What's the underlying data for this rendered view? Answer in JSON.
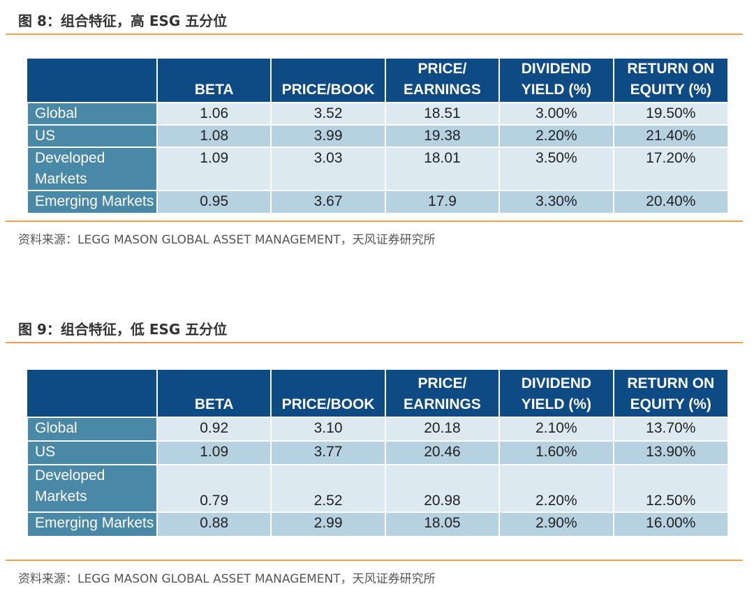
{
  "figure8": {
    "title": "图 8：组合特征，高 ESG 五分位",
    "headers": [
      "",
      "BETA",
      "PRICE/BOOK",
      "PRICE/\nEARNINGS",
      "DIVIDEND\nYIELD (%)",
      "RETURN ON\nEQUITY (%)"
    ],
    "rows": [
      {
        "label": "Global",
        "values": [
          "1.06",
          "3.52",
          "18.51",
          "3.00%",
          "19.50%"
        ]
      },
      {
        "label": "US",
        "values": [
          "1.08",
          "3.99",
          "19.38",
          "2.20%",
          "21.40%"
        ]
      },
      {
        "label": "Developed\nMarkets",
        "values": [
          "1.09",
          "3.03",
          "18.01",
          "3.50%",
          "17.20%"
        ]
      },
      {
        "label": "Emerging Markets",
        "values": [
          "0.95",
          "3.67",
          "17.9",
          "3.30%",
          "20.40%"
        ]
      }
    ],
    "source": "资料来源：LEGG MASON GLOBAL ASSET MANAGEMENT，天风证券研究所"
  },
  "figure9": {
    "title": "图 9：组合特征，低 ESG 五分位",
    "headers": [
      "",
      "BETA",
      "PRICE/BOOK",
      "PRICE/\nEARNINGS",
      "DIVIDEND\nYIELD (%)",
      "RETURN ON\nEQUITY (%)"
    ],
    "rows": [
      {
        "label": "Global",
        "values": [
          "0.92",
          "3.10",
          "20.18",
          "2.10%",
          "13.70%"
        ]
      },
      {
        "label": "US",
        "values": [
          "1.09",
          "3.77",
          "20.46",
          "1.60%",
          "13.90%"
        ]
      },
      {
        "label": "Developed\nMarkets",
        "values": [
          "0.79",
          "2.52",
          "20.98",
          "2.20%",
          "12.50%"
        ]
      },
      {
        "label": "Emerging Markets",
        "values": [
          "0.88",
          "2.99",
          "18.05",
          "2.90%",
          "16.00%"
        ]
      }
    ],
    "source": "资料来源：LEGG MASON GLOBAL ASSET MANAGEMENT，天风证券研究所"
  }
}
